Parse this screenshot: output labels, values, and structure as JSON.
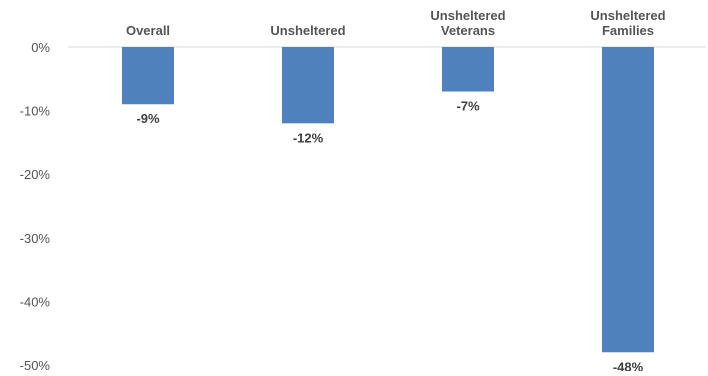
{
  "chart_data": {
    "type": "bar",
    "categories": [
      [
        "Overall"
      ],
      [
        "Unsheltered"
      ],
      [
        "Unsheltered",
        "Veterans"
      ],
      [
        "Unsheltered",
        "Families"
      ]
    ],
    "values": [
      -9,
      -12,
      -7,
      -48
    ],
    "data_labels": [
      "-9%",
      "-12%",
      "-7%",
      "-48%"
    ],
    "yticks": [
      0,
      -10,
      -20,
      -30,
      -40,
      -50
    ],
    "ytick_labels": [
      "0%",
      "-10%",
      "-20%",
      "-30%",
      "-40%",
      "-50%"
    ],
    "ylim": [
      -50,
      0
    ],
    "grid": false,
    "colors": {
      "bar": "#4f81bd",
      "axis": "#d9d9d9"
    }
  }
}
